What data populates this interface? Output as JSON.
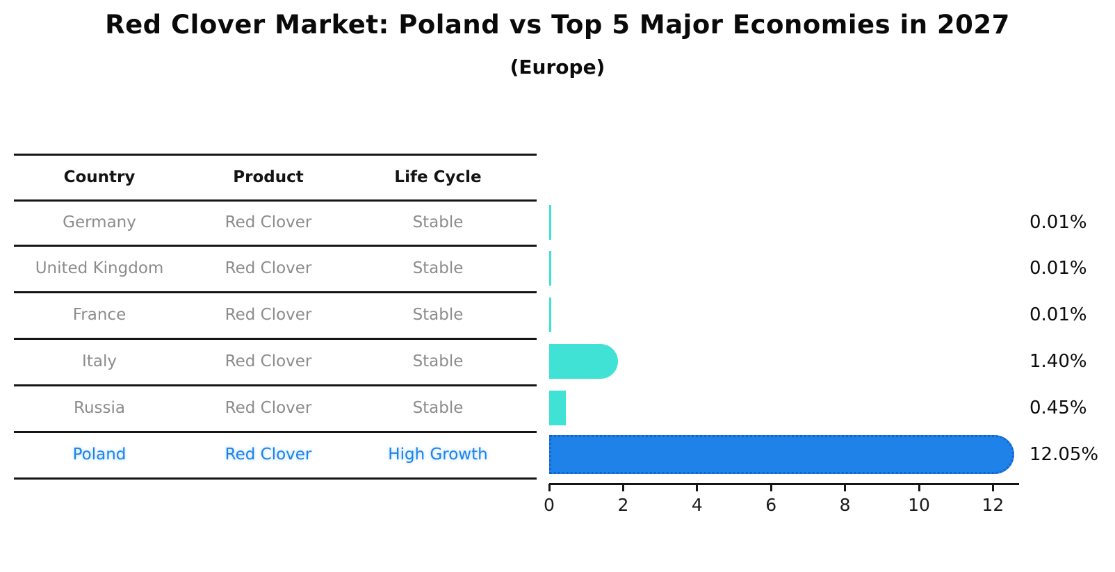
{
  "title": "Red Clover Market: Poland vs Top 5 Major Economies in 2027",
  "subtitle": "(Europe)",
  "table": {
    "headers": [
      "Country",
      "Product",
      "Life Cycle"
    ]
  },
  "colors": {
    "bar_default": "#40e2d6",
    "bar_highlight": "#1e82e8",
    "bar_highlight_border": "#1464cf",
    "highlight_text": "#1e82e8",
    "row_text": "#8c8c8c",
    "header_text": "#141414",
    "axis_line": "#151515"
  },
  "chart_data": {
    "type": "bar",
    "orientation": "horizontal",
    "title": "Red Clover Market: Poland vs Top 5 Major Economies in 2027",
    "subtitle": "(Europe)",
    "xlabel": "",
    "ylabel": "",
    "value_unit": "%",
    "xlim": [
      0,
      12.7
    ],
    "xticks": [
      "0",
      "2",
      "4",
      "6",
      "8",
      "10",
      "12"
    ],
    "grid": false,
    "legend": false,
    "rows": [
      {
        "country": "Germany",
        "product": "Red Clover",
        "life_cycle": "Stable",
        "value": 0.01,
        "value_label": "0.01%",
        "highlight": false
      },
      {
        "country": "United Kingdom",
        "product": "Red Clover",
        "life_cycle": "Stable",
        "value": 0.01,
        "value_label": "0.01%",
        "highlight": false
      },
      {
        "country": "France",
        "product": "Red Clover",
        "life_cycle": "Stable",
        "value": 0.01,
        "value_label": "0.01%",
        "highlight": false
      },
      {
        "country": "Italy",
        "product": "Red Clover",
        "life_cycle": "Stable",
        "value": 1.4,
        "value_label": "1.40%",
        "highlight": false
      },
      {
        "country": "Russia",
        "product": "Red Clover",
        "life_cycle": "Stable",
        "value": 0.45,
        "value_label": "0.45%",
        "highlight": false
      },
      {
        "country": "Poland",
        "product": "Red Clover",
        "life_cycle": "High Growth",
        "value": 12.05,
        "value_label": "12.05%",
        "highlight": true
      }
    ]
  }
}
